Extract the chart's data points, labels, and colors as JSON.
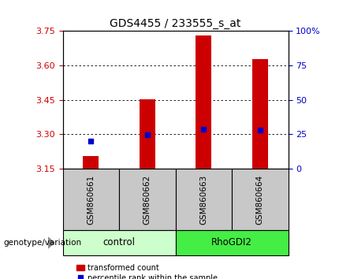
{
  "title": "GDS4455 / 233555_s_at",
  "samples": [
    "GSM860661",
    "GSM860662",
    "GSM860663",
    "GSM860664"
  ],
  "groups": [
    "control",
    "control",
    "RhoGDI2",
    "RhoGDI2"
  ],
  "bar_baseline": 3.15,
  "red_bar_tops": [
    3.205,
    3.452,
    3.728,
    3.628
  ],
  "blue_square_values": [
    3.272,
    3.298,
    3.322,
    3.318
  ],
  "ylim_left": [
    3.15,
    3.75
  ],
  "yticks_left": [
    3.15,
    3.3,
    3.45,
    3.6,
    3.75
  ],
  "ylim_right": [
    0,
    100
  ],
  "yticks_right": [
    0,
    25,
    50,
    75,
    100
  ],
  "ytick_right_labels": [
    "0",
    "25",
    "50",
    "75",
    "100%"
  ],
  "left_tick_color": "#cc0000",
  "right_tick_color": "#0000cc",
  "bar_color": "#cc0000",
  "square_color": "#0000cc",
  "group_label": "genotype/variation",
  "legend_items": [
    "transformed count",
    "percentile rank within the sample"
  ],
  "bar_width": 0.28,
  "bg_control": "#ccffcc",
  "bg_rhodgi2": "#44ee44",
  "bg_sample": "#c8c8c8"
}
